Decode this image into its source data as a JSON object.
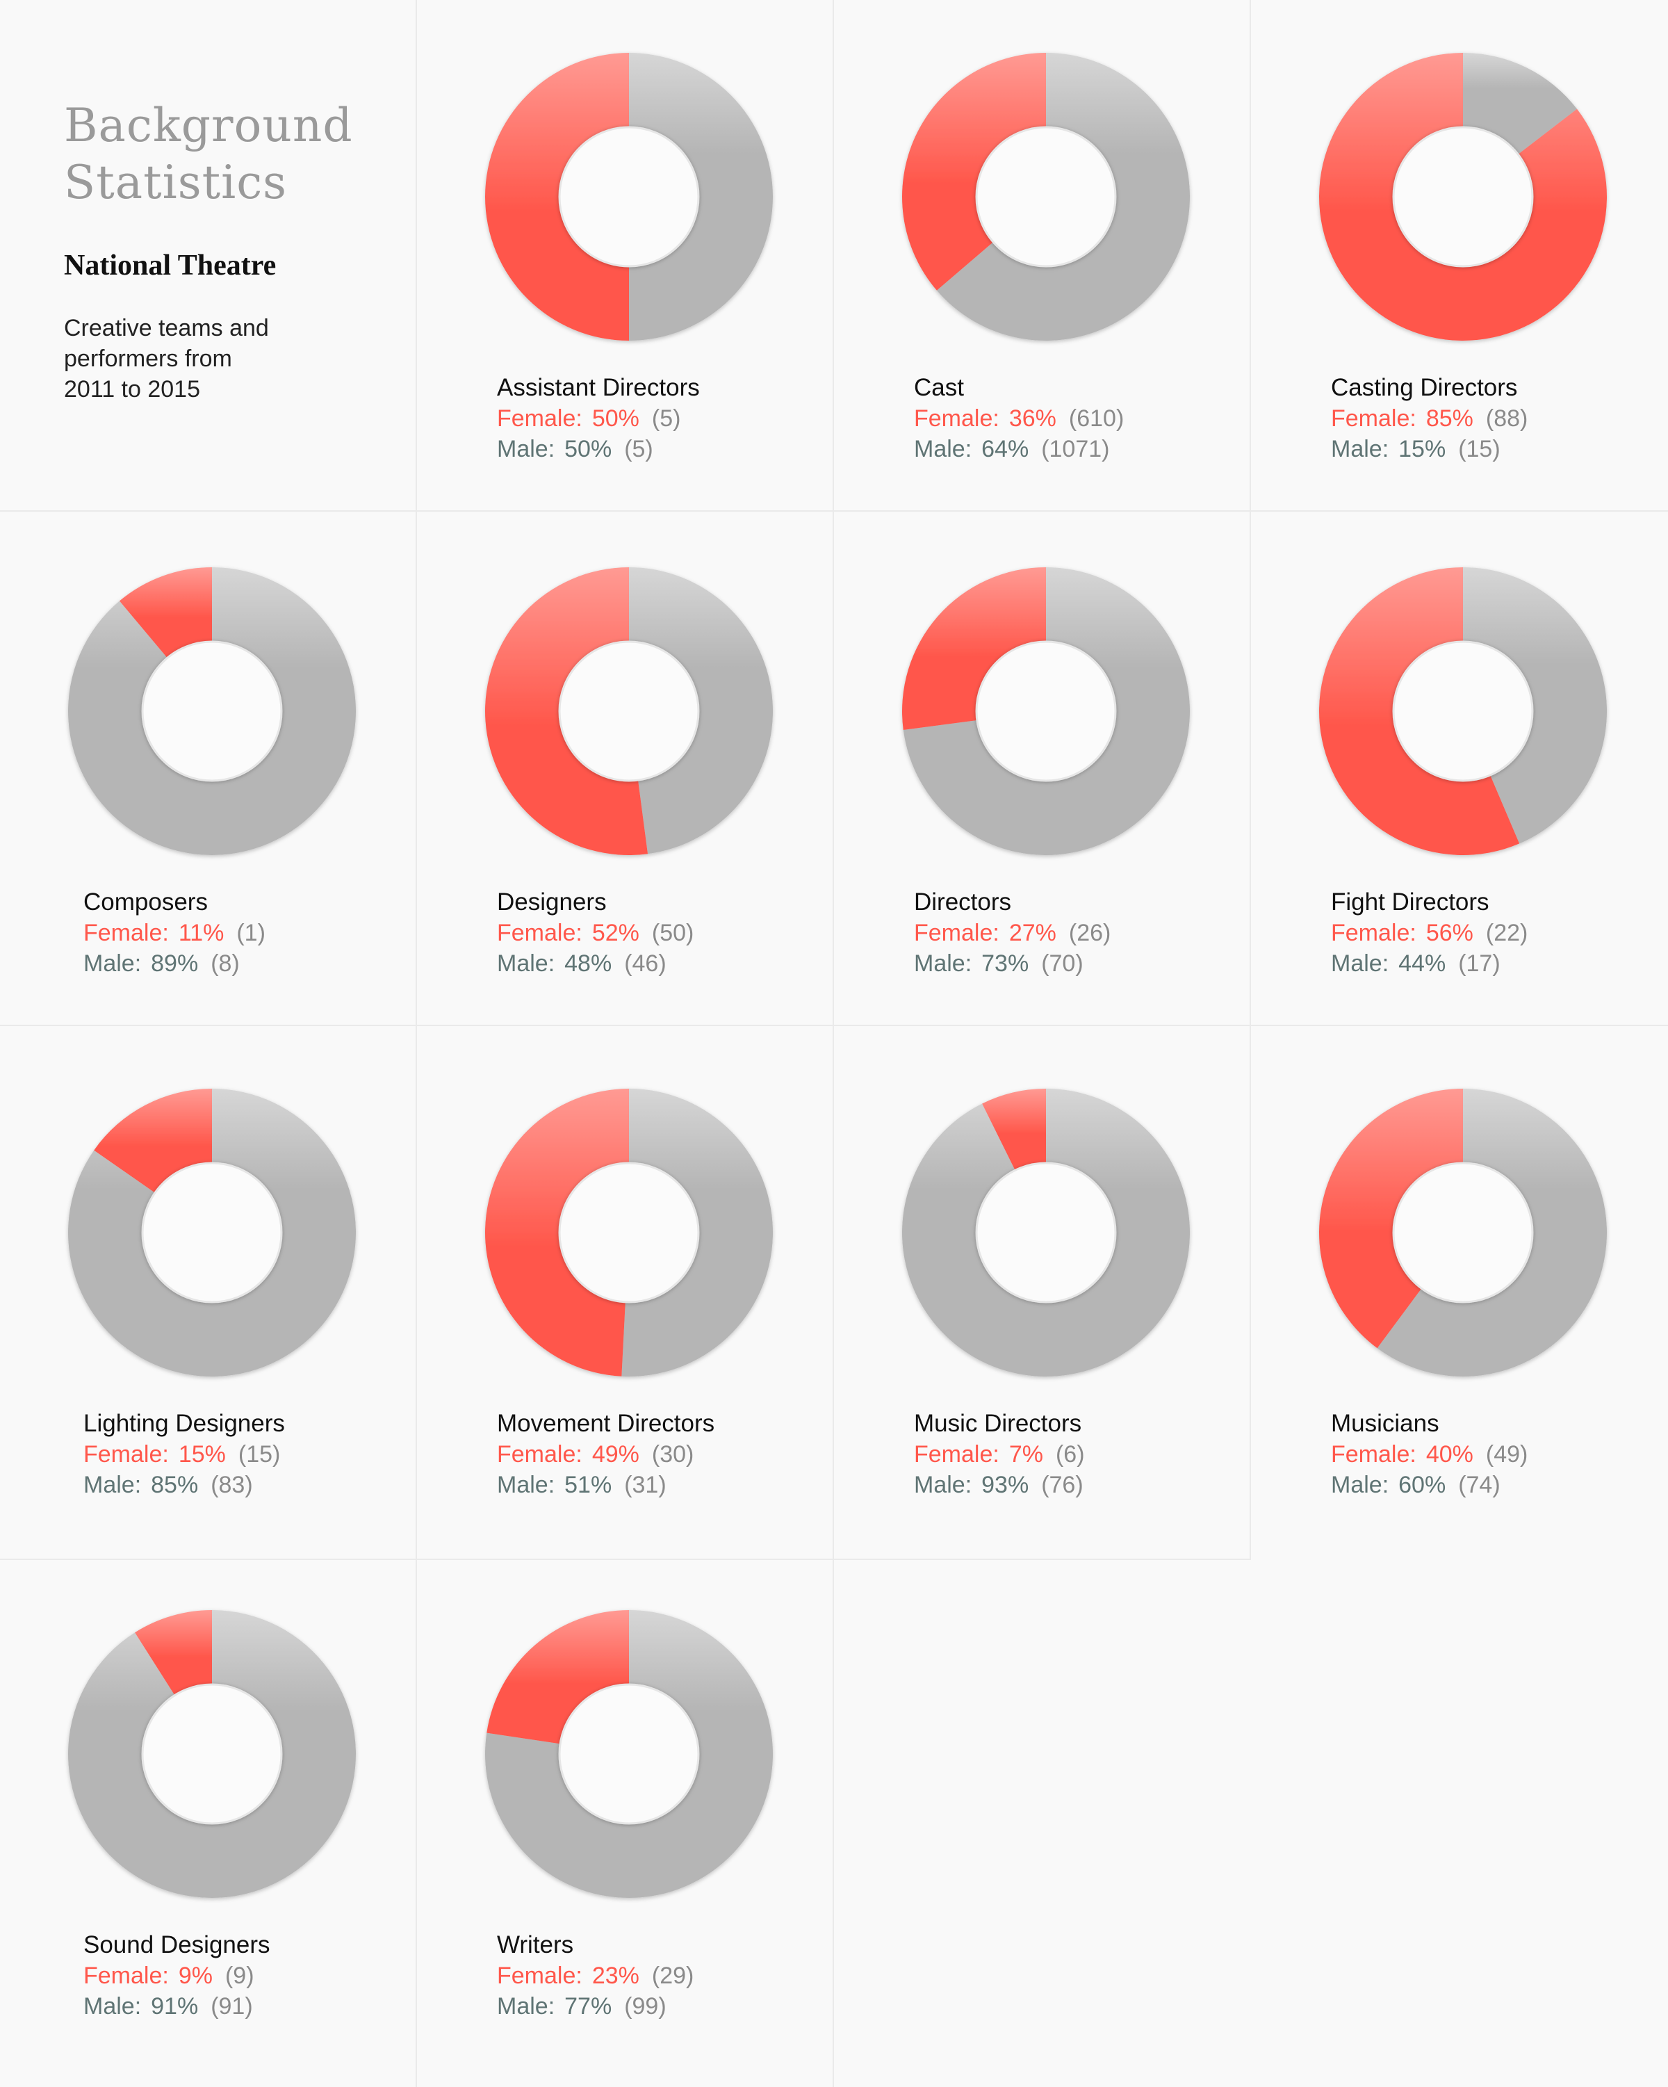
{
  "intro": {
    "title": "Background\nStatistics",
    "subtitle": "National Theatre",
    "description": "Creative teams and\nperformers from\n2011 to 2015"
  },
  "colors": {
    "female": "#ff574b",
    "female_light": "#ff9a93",
    "male": "#b5b5b5",
    "male_light": "#d6d6d6",
    "female_text": "#ff574b",
    "male_text": "#5f7474",
    "count_text": "#8a8a8a"
  },
  "labels": {
    "female": "Female:",
    "male": "Male:"
  },
  "chart_data": {
    "type": "pie",
    "variant": "donut",
    "layout": "small multiples, 4 columns",
    "series_names": [
      "Female",
      "Male"
    ],
    "charts": [
      {
        "name": "Assistant Directors",
        "female_pct": "50%",
        "female_count": "(5)",
        "male_pct": "50%",
        "male_count": "(5)",
        "female_value": 5,
        "male_value": 5
      },
      {
        "name": "Cast",
        "female_pct": "36%",
        "female_count": "(610)",
        "male_pct": "64%",
        "male_count": "(1071)",
        "female_value": 610,
        "male_value": 1071
      },
      {
        "name": "Casting Directors",
        "female_pct": "85%",
        "female_count": "(88)",
        "male_pct": "15%",
        "male_count": "(15)",
        "female_value": 88,
        "male_value": 15
      },
      {
        "name": "Composers",
        "female_pct": "11%",
        "female_count": "(1)",
        "male_pct": "89%",
        "male_count": "(8)",
        "female_value": 1,
        "male_value": 8
      },
      {
        "name": "Designers",
        "female_pct": "52%",
        "female_count": "(50)",
        "male_pct": "48%",
        "male_count": "(46)",
        "female_value": 50,
        "male_value": 46
      },
      {
        "name": "Directors",
        "female_pct": "27%",
        "female_count": "(26)",
        "male_pct": "73%",
        "male_count": "(70)",
        "female_value": 26,
        "male_value": 70
      },
      {
        "name": "Fight Directors",
        "female_pct": "56%",
        "female_count": "(22)",
        "male_pct": "44%",
        "male_count": "(17)",
        "female_value": 22,
        "male_value": 17
      },
      {
        "name": "Lighting Designers",
        "female_pct": "15%",
        "female_count": "(15)",
        "male_pct": "85%",
        "male_count": "(83)",
        "female_value": 15,
        "male_value": 83
      },
      {
        "name": "Movement Directors",
        "female_pct": "49%",
        "female_count": "(30)",
        "male_pct": "51%",
        "male_count": "(31)",
        "female_value": 30,
        "male_value": 31
      },
      {
        "name": "Music Directors",
        "female_pct": "7%",
        "female_count": "(6)",
        "male_pct": "93%",
        "male_count": "(76)",
        "female_value": 6,
        "male_value": 76
      },
      {
        "name": "Musicians",
        "female_pct": "40%",
        "female_count": "(49)",
        "male_pct": "60%",
        "male_count": "(74)",
        "female_value": 49,
        "male_value": 74
      },
      {
        "name": "Sound Designers",
        "female_pct": "9%",
        "female_count": "(9)",
        "male_pct": "91%",
        "male_count": "(91)",
        "female_value": 9,
        "male_value": 91
      },
      {
        "name": "Writers",
        "female_pct": "23%",
        "female_count": "(29)",
        "male_pct": "77%",
        "male_count": "(99)",
        "female_value": 29,
        "male_value": 99
      }
    ]
  }
}
